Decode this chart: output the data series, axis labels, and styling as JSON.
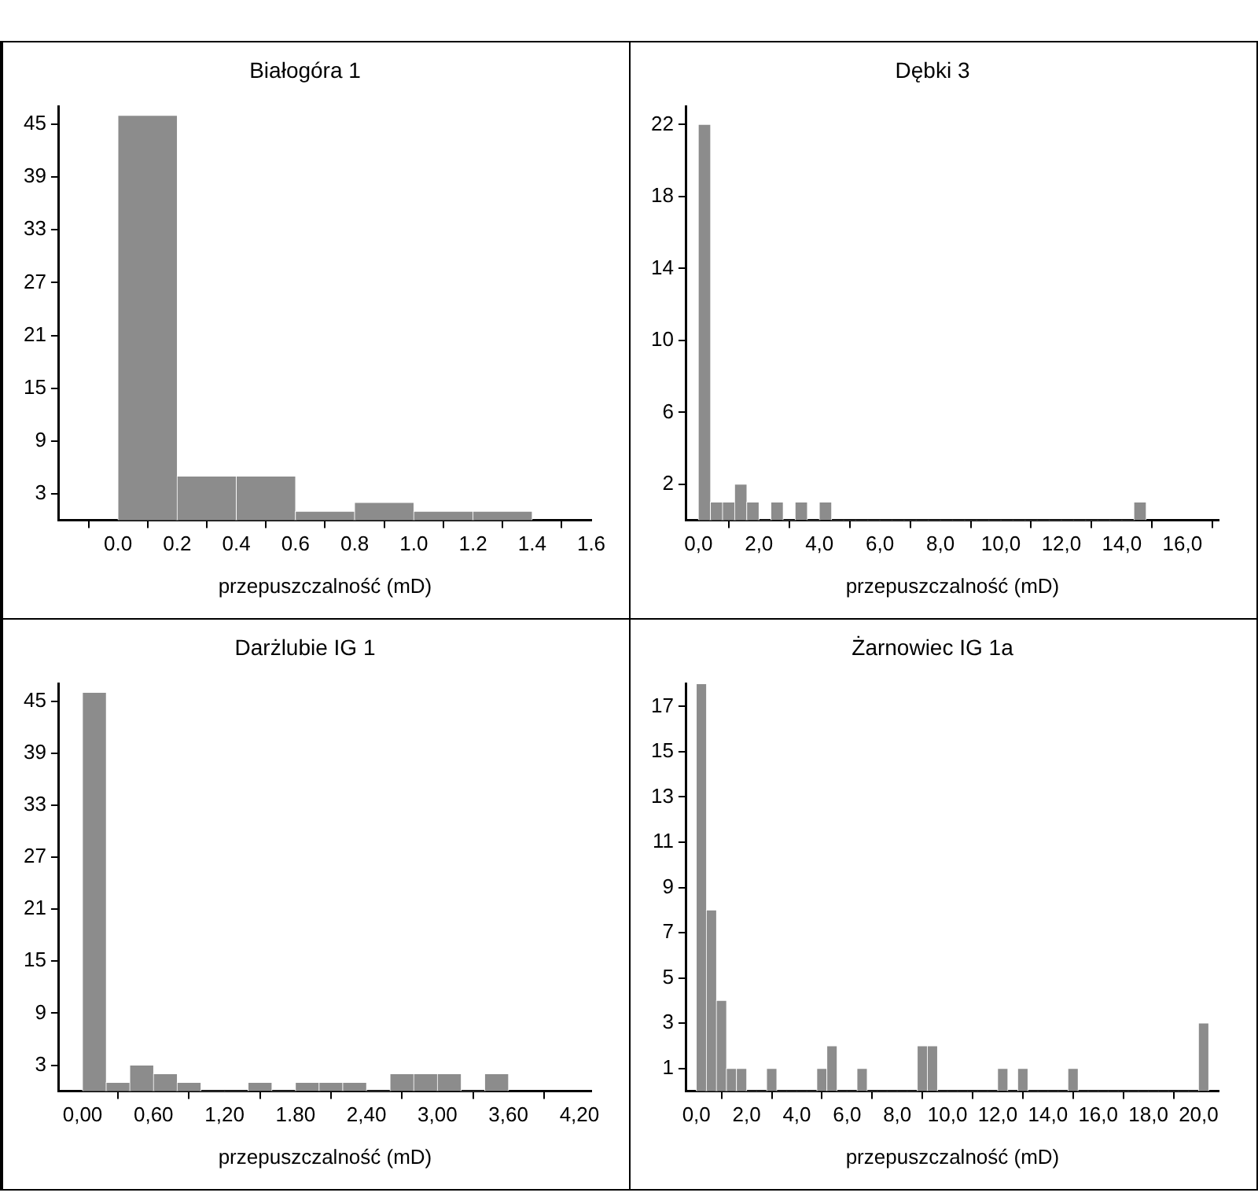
{
  "chart_data": [
    {
      "type": "histogram",
      "title": "Białogóra 1",
      "xlabel": "przepuszczalność (mD)",
      "color": "#8c8c8c",
      "bins": [
        0,
        0.2,
        0.4,
        0.6,
        0.8,
        1.0,
        1.2,
        1.4
      ],
      "values": [
        46,
        5,
        5,
        1,
        2,
        1,
        1
      ],
      "xlim": [
        -0.2,
        1.6
      ],
      "xticks": [
        {
          "value": 0,
          "label": "0.0"
        },
        {
          "value": 0.2,
          "label": "0.2"
        },
        {
          "value": 0.4,
          "label": "0.4"
        },
        {
          "value": 0.6,
          "label": "0.6"
        },
        {
          "value": 0.8,
          "label": "0.8"
        },
        {
          "value": 1.0,
          "label": "1.0"
        },
        {
          "value": 1.2,
          "label": "1.2"
        },
        {
          "value": 1.4,
          "label": "1.4"
        },
        {
          "value": 1.6,
          "label": "1.6"
        }
      ],
      "ylim": [
        0,
        47
      ],
      "yticks": [
        3,
        9,
        15,
        21,
        27,
        33,
        39,
        45
      ],
      "grid": false,
      "legend": false
    },
    {
      "type": "histogram",
      "title": "Dębki 3",
      "xlabel": "przepuszczalność (mD)",
      "color": "#8c8c8c",
      "bins": [
        0,
        0.4,
        0.8,
        1.2,
        1.6,
        2.0,
        2.4,
        2.8,
        3.2,
        3.6,
        4.0,
        4.4,
        4.8,
        5.2,
        5.6,
        6.0,
        6.4,
        6.8,
        7.2,
        7.6,
        8.0,
        8.4,
        8.8,
        9.2,
        9.6,
        10.0,
        10.4,
        10.8,
        11.2,
        11.6,
        12.0,
        12.4,
        12.8,
        13.2,
        13.6,
        14.0,
        14.4,
        14.8
      ],
      "values": [
        22,
        1,
        1,
        2,
        1,
        0,
        1,
        0,
        1,
        0,
        1,
        0,
        0,
        0,
        0,
        0,
        0,
        0,
        0,
        0,
        0,
        0,
        0,
        0,
        0,
        0,
        0,
        0,
        0,
        0,
        0,
        0,
        0,
        0,
        0,
        0,
        1
      ],
      "xlim": [
        -0.4,
        17.2
      ],
      "xticks": [
        {
          "value": 0,
          "label": "0,0"
        },
        {
          "value": 2,
          "label": "2,0"
        },
        {
          "value": 4,
          "label": "4,0"
        },
        {
          "value": 6,
          "label": "6,0"
        },
        {
          "value": 8,
          "label": "8,0"
        },
        {
          "value": 10,
          "label": "10,0"
        },
        {
          "value": 12,
          "label": "12,0"
        },
        {
          "value": 14,
          "label": "14,0"
        },
        {
          "value": 16,
          "label": "16,0"
        }
      ],
      "ylim": [
        0,
        23
      ],
      "yticks": [
        2,
        6,
        10,
        14,
        18,
        22
      ],
      "grid": false,
      "legend": false
    },
    {
      "type": "histogram",
      "title": "Darżlubie IG 1",
      "xlabel": "przepuszczalność (mD)",
      "color": "#8c8c8c",
      "bins": [
        0,
        0.2,
        0.4,
        0.6,
        0.8,
        1.0,
        1.2,
        1.4,
        1.6,
        1.8,
        2.0,
        2.2,
        2.4,
        2.6,
        2.8,
        3.0,
        3.2,
        3.4,
        3.6
      ],
      "values": [
        46,
        1,
        3,
        2,
        1,
        0,
        0,
        1,
        0,
        1,
        1,
        1,
        0,
        2,
        2,
        2,
        0,
        2
      ],
      "xlim": [
        -0.2,
        4.3
      ],
      "xticks": [
        {
          "value": 0,
          "label": "0,00"
        },
        {
          "value": 0.6,
          "label": "0,60"
        },
        {
          "value": 1.2,
          "label": "1,20"
        },
        {
          "value": 1.8,
          "label": "1.80"
        },
        {
          "value": 2.4,
          "label": "2,40"
        },
        {
          "value": 3.0,
          "label": "3,00"
        },
        {
          "value": 3.6,
          "label": "3,60"
        },
        {
          "value": 4.2,
          "label": "4,20"
        }
      ],
      "ylim": [
        0,
        47
      ],
      "yticks": [
        3,
        9,
        15,
        21,
        27,
        33,
        39,
        45
      ],
      "grid": false,
      "legend": false
    },
    {
      "type": "histogram",
      "title": "Żarnowiec IG 1a",
      "xlabel": "przepuszczalność (mD)",
      "color": "#8c8c8c",
      "bins": [
        0,
        0.4,
        0.8,
        1.2,
        1.6,
        2.0,
        2.4,
        2.8,
        3.2,
        3.6,
        4.0,
        4.4,
        4.8,
        5.2,
        5.6,
        6.0,
        6.4,
        6.8,
        7.2,
        7.6,
        8.0,
        8.4,
        8.8,
        9.2,
        9.6,
        10.0,
        10.4,
        10.8,
        11.2,
        11.6,
        12.0,
        12.4,
        12.8,
        13.2,
        13.6,
        14.0,
        14.4,
        14.8,
        15.2,
        15.6,
        16.0,
        16.4,
        16.8,
        17.2,
        17.6,
        18.0,
        18.4,
        18.8,
        19.2,
        19.6,
        20.0,
        20.4
      ],
      "values": [
        18,
        8,
        4,
        1,
        1,
        0,
        0,
        1,
        0,
        0,
        0,
        0,
        1,
        2,
        0,
        0,
        1,
        0,
        0,
        0,
        0,
        0,
        2,
        2,
        0,
        0,
        0,
        0,
        0,
        0,
        1,
        0,
        1,
        0,
        0,
        0,
        0,
        1,
        0,
        0,
        0,
        0,
        0,
        0,
        0,
        0,
        0,
        0,
        0,
        0,
        3
      ],
      "xlim": [
        -0.4,
        20.8
      ],
      "xticks": [
        {
          "value": 0,
          "label": "0,0"
        },
        {
          "value": 2,
          "label": "2,0"
        },
        {
          "value": 4,
          "label": "4,0"
        },
        {
          "value": 6,
          "label": "6,0"
        },
        {
          "value": 8,
          "label": "8,0"
        },
        {
          "value": 10,
          "label": "10,0"
        },
        {
          "value": 12,
          "label": "12,0"
        },
        {
          "value": 14,
          "label": "14,0"
        },
        {
          "value": 16,
          "label": "16,0"
        },
        {
          "value": 18,
          "label": "18,0"
        },
        {
          "value": 20,
          "label": "20,0"
        }
      ],
      "ylim": [
        0,
        18
      ],
      "yticks": [
        1,
        3,
        5,
        7,
        9,
        11,
        13,
        15,
        17
      ],
      "grid": false,
      "legend": false
    }
  ]
}
